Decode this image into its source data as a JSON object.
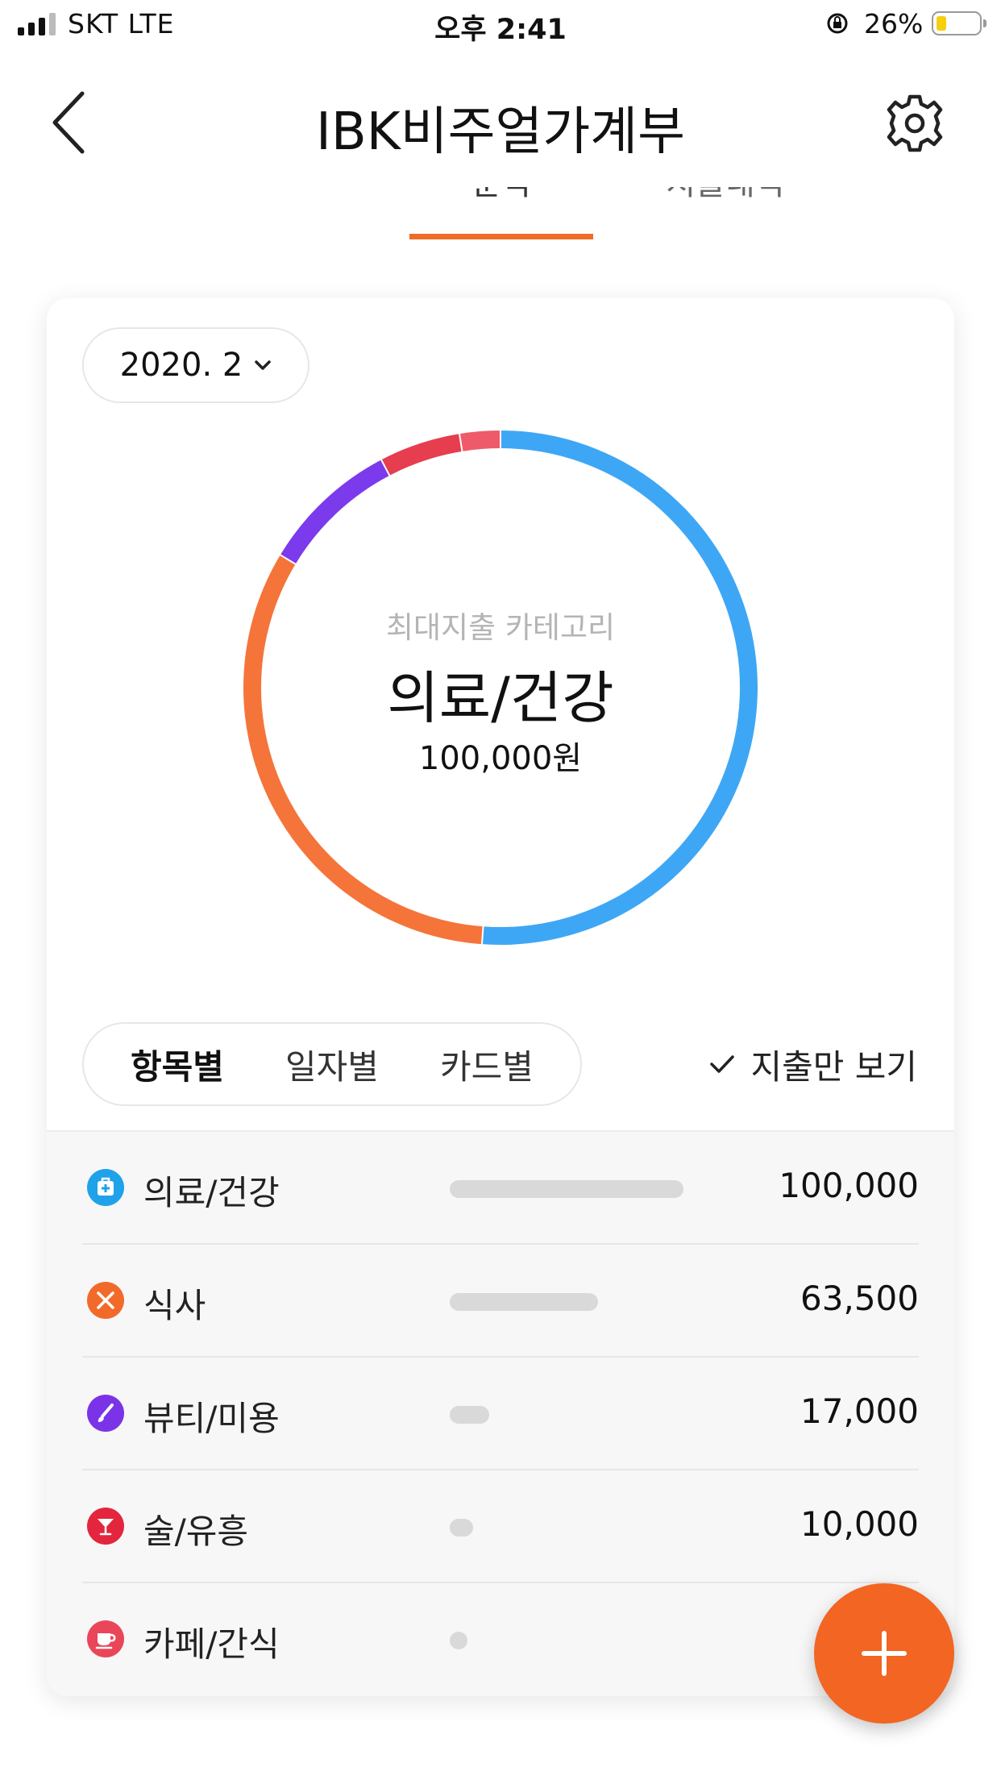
{
  "status_bar": {
    "carrier": "SKT   LTE",
    "time": "오후 2:41",
    "battery": "26%"
  },
  "header": {
    "title": "IBK비주얼가계부",
    "back_icon": "chevron-left-icon",
    "settings_icon": "gear-icon"
  },
  "tabs": [
    {
      "label": "분석",
      "selected": true
    },
    {
      "label": "지출내역",
      "selected": false
    }
  ],
  "period": {
    "label": "2020. 2"
  },
  "summary": {
    "caption": "최대지출 카테고리",
    "category": "의료/건강",
    "amount": "100,000원"
  },
  "chart_data": {
    "type": "pie",
    "categories": [
      "의료/건강",
      "식사",
      "뷰티/미용",
      "술/유흥",
      "카페/간식"
    ],
    "values": [
      100000,
      63500,
      17000,
      10000,
      5000
    ],
    "colors": [
      "#3ea7f5",
      "#f5743a",
      "#7c3aed",
      "#e63d4f",
      "#ef5a6a"
    ]
  },
  "view_tabs": [
    {
      "label": "항목별",
      "selected": true
    },
    {
      "label": "일자별",
      "selected": false
    },
    {
      "label": "카드별",
      "selected": false
    }
  ],
  "filter": {
    "label": "지출만 보기",
    "checked": true
  },
  "list": [
    {
      "name": "의료/건강",
      "amount": "100,000",
      "ratio": 1.0,
      "color": "#1fa2ea",
      "icon": "medical-bag-icon"
    },
    {
      "name": "식사",
      "amount": "63,500",
      "ratio": 0.635,
      "color": "#f26a2a",
      "icon": "fork-knife-icon"
    },
    {
      "name": "뷰티/미용",
      "amount": "17,000",
      "ratio": 0.17,
      "color": "#7b33e8",
      "icon": "brush-icon"
    },
    {
      "name": "술/유흥",
      "amount": "10,000",
      "ratio": 0.1,
      "color": "#e3263d",
      "icon": "cocktail-icon"
    },
    {
      "name": "카페/간식",
      "amount": "",
      "ratio": 0.05,
      "color": "#ea4659",
      "icon": "coffee-cup-icon"
    }
  ],
  "fab": {
    "icon": "plus-icon"
  }
}
